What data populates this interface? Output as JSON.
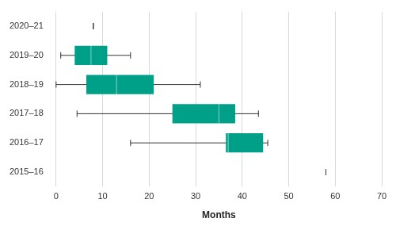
{
  "chart_data": {
    "type": "boxplot",
    "orientation": "horizontal",
    "categories": [
      "2020–21",
      "2019–20",
      "2018–19",
      "2017–18",
      "2016–17",
      "2015–16"
    ],
    "min": [
      8,
      1,
      0,
      4.5,
      16,
      58
    ],
    "q1": [
      8,
      4,
      6.5,
      25,
      36.5,
      58
    ],
    "median": [
      8,
      7.5,
      13,
      35,
      37,
      58
    ],
    "q3": [
      8,
      11,
      21,
      38.5,
      44.5,
      58
    ],
    "max": [
      8,
      16,
      31,
      43.5,
      45.5,
      58
    ],
    "color": "#00a088",
    "xlabel": "Months",
    "xlim": [
      0,
      70
    ],
    "xticks": [
      0,
      10,
      20,
      30,
      40,
      50,
      60,
      70
    ],
    "grid": true
  }
}
